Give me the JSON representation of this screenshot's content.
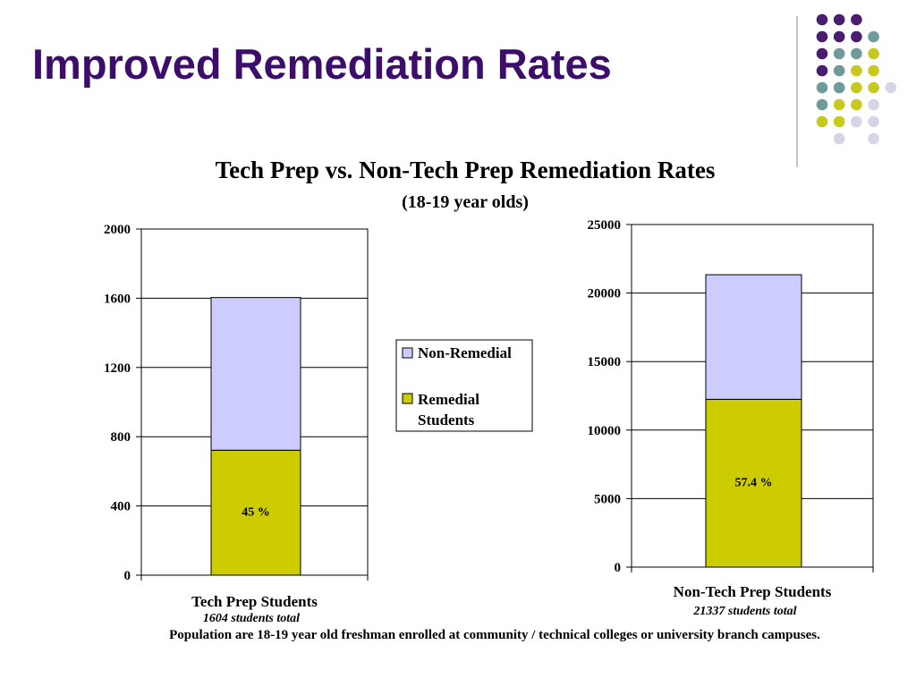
{
  "slide": {
    "title": "Improved Remediation Rates",
    "footnote": "Population are 18-19 year old freshman enrolled at community / technical colleges or university branch campuses."
  },
  "colors": {
    "title": "#3d0d6b",
    "non_remedial": "#ccccff",
    "remedial": "#cccc00",
    "dot_purple": "#4b1d6e",
    "dot_teal": "#6f9a9a",
    "dot_lime": "#c8c81e",
    "dot_lavender": "#d5d5e8"
  },
  "chart_data": {
    "title": "Tech Prep vs. Non-Tech Prep Remediation Rates",
    "subtitle": "(18-19 year olds)",
    "legend": {
      "placement": "center",
      "entries": [
        "Non-Remedial",
        "Remedial Students"
      ]
    },
    "charts": [
      {
        "type": "bar",
        "stacked": true,
        "category": "Tech Prep Students",
        "note": "1604 students total",
        "ylim": [
          0,
          2000
        ],
        "ticks": [
          "0",
          "400",
          "800",
          "1200",
          "1600",
          "2000"
        ],
        "grid": true,
        "series": [
          {
            "name": "Remedial Students",
            "value": 722,
            "label": "45 %"
          },
          {
            "name": "Non-Remedial",
            "value": 882
          }
        ]
      },
      {
        "type": "bar",
        "stacked": true,
        "category": "Non-Tech Prep Students",
        "note": "21337  students total",
        "ylim": [
          0,
          25000
        ],
        "ticks": [
          "0",
          "5000",
          "10000",
          "15000",
          "20000",
          "25000"
        ],
        "grid": true,
        "series": [
          {
            "name": "Remedial Students",
            "value": 12247,
            "label": "57.4 %"
          },
          {
            "name": "Non-Remedial",
            "value": 9090
          }
        ]
      }
    ]
  }
}
